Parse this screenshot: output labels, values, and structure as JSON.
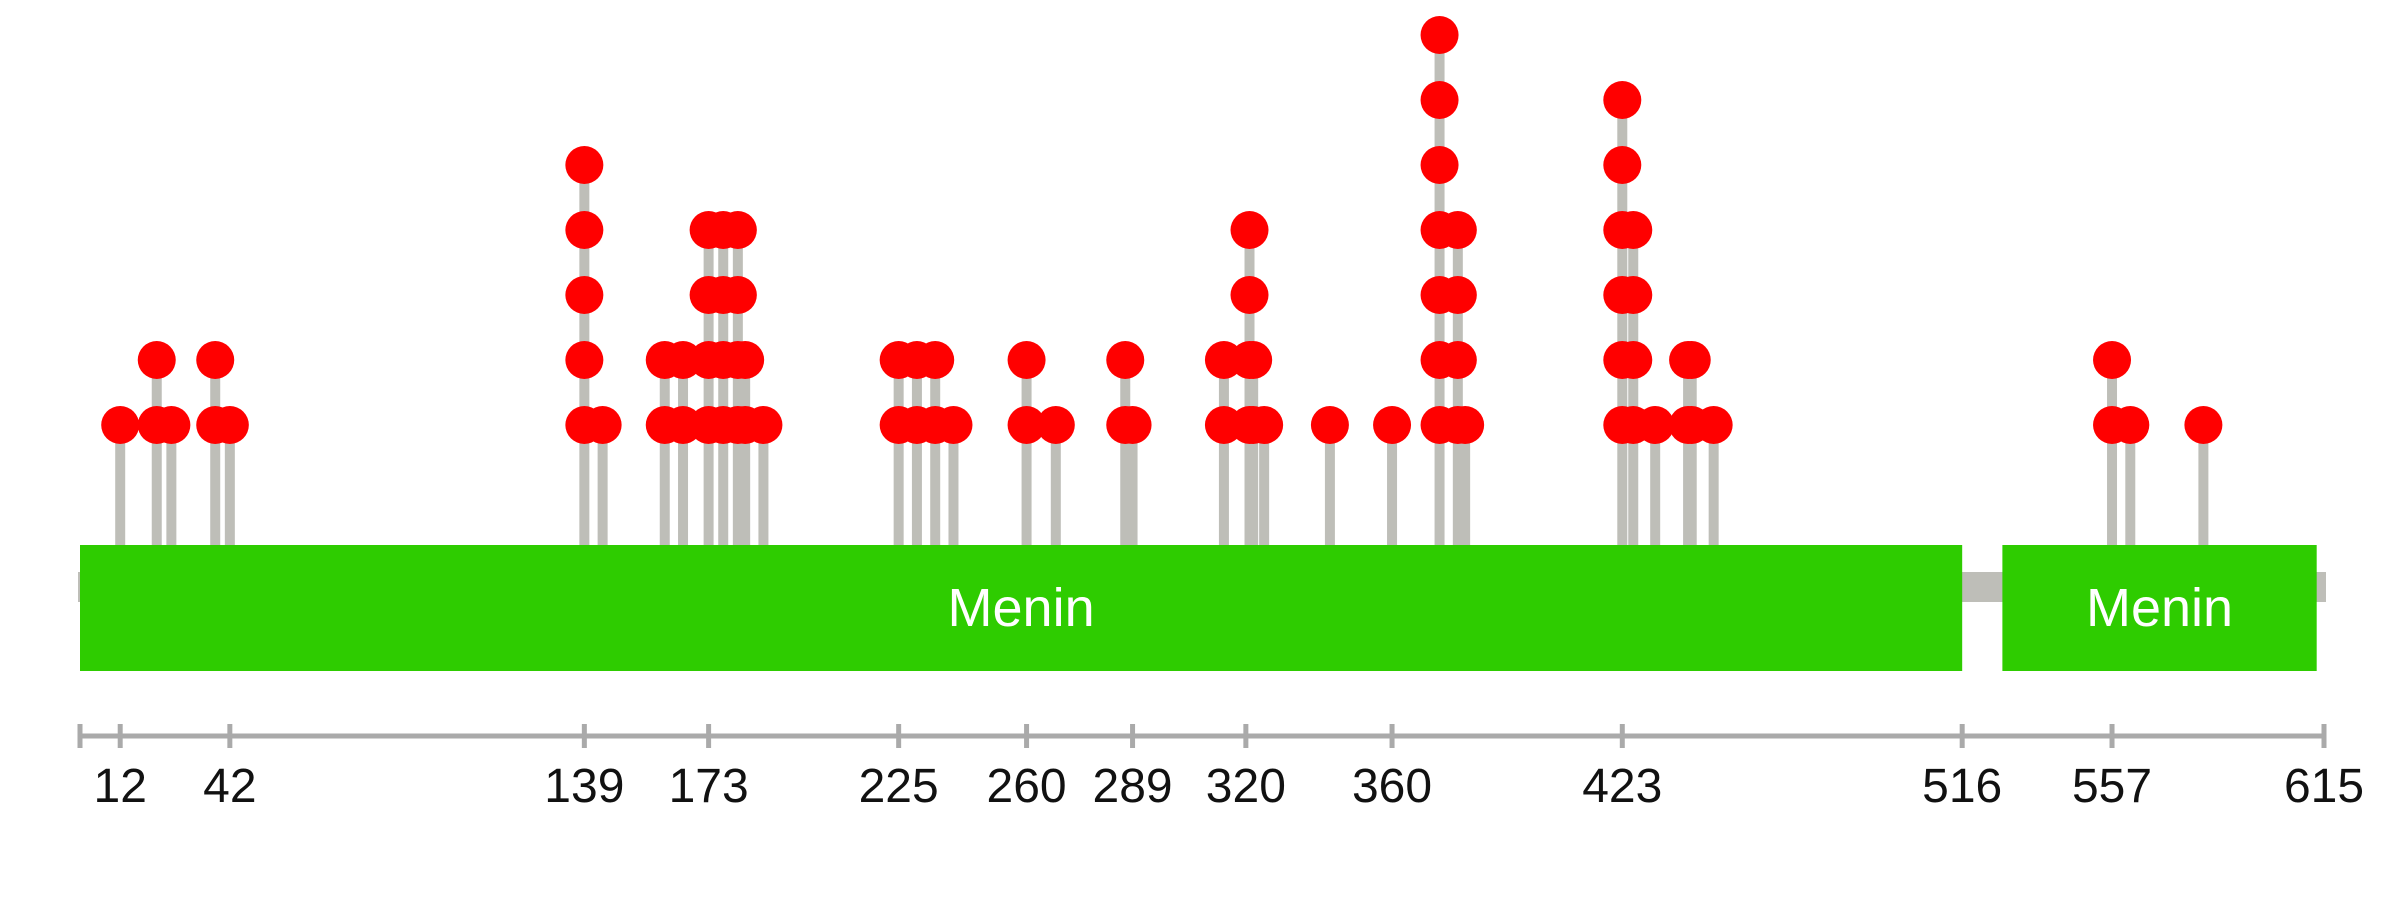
{
  "chart_data": {
    "type": "lollipop",
    "protein_length": 615,
    "colors": {
      "backbone": "#bebeb8",
      "domain": "#2ecc00",
      "stem": "#bebeb8",
      "mutation": "#ff0000",
      "axis": "#aaaaaa"
    },
    "domains": [
      {
        "name": "Menin",
        "start": 1,
        "end": 516
      },
      {
        "name": "Menin",
        "start": 527,
        "end": 613
      }
    ],
    "x_ticks": [
      12,
      42,
      139,
      173,
      225,
      260,
      289,
      320,
      360,
      423,
      516,
      557,
      615
    ],
    "mutations": [
      {
        "position": 12,
        "count": 1
      },
      {
        "position": 22,
        "count": 2
      },
      {
        "position": 26,
        "count": 1
      },
      {
        "position": 38,
        "count": 2
      },
      {
        "position": 42,
        "count": 1
      },
      {
        "position": 139,
        "count": 5
      },
      {
        "position": 144,
        "count": 1
      },
      {
        "position": 161,
        "count": 2
      },
      {
        "position": 166,
        "count": 2
      },
      {
        "position": 173,
        "count": 4
      },
      {
        "position": 177,
        "count": 4
      },
      {
        "position": 181,
        "count": 4
      },
      {
        "position": 183,
        "count": 2
      },
      {
        "position": 188,
        "count": 1
      },
      {
        "position": 225,
        "count": 2
      },
      {
        "position": 230,
        "count": 2
      },
      {
        "position": 235,
        "count": 2
      },
      {
        "position": 240,
        "count": 1
      },
      {
        "position": 260,
        "count": 2
      },
      {
        "position": 268,
        "count": 1
      },
      {
        "position": 287,
        "count": 2
      },
      {
        "position": 289,
        "count": 1
      },
      {
        "position": 314,
        "count": 2
      },
      {
        "position": 321,
        "count": 4
      },
      {
        "position": 322,
        "count": 2
      },
      {
        "position": 325,
        "count": 1
      },
      {
        "position": 343,
        "count": 1
      },
      {
        "position": 360,
        "count": 1
      },
      {
        "position": 373,
        "count": 7
      },
      {
        "position": 378,
        "count": 4
      },
      {
        "position": 380,
        "count": 1
      },
      {
        "position": 423,
        "count": 6
      },
      {
        "position": 426,
        "count": 4
      },
      {
        "position": 432,
        "count": 1
      },
      {
        "position": 441,
        "count": 2
      },
      {
        "position": 442,
        "count": 2
      },
      {
        "position": 448,
        "count": 1
      },
      {
        "position": 557,
        "count": 2
      },
      {
        "position": 562,
        "count": 1
      },
      {
        "position": 582,
        "count": 1
      }
    ]
  }
}
